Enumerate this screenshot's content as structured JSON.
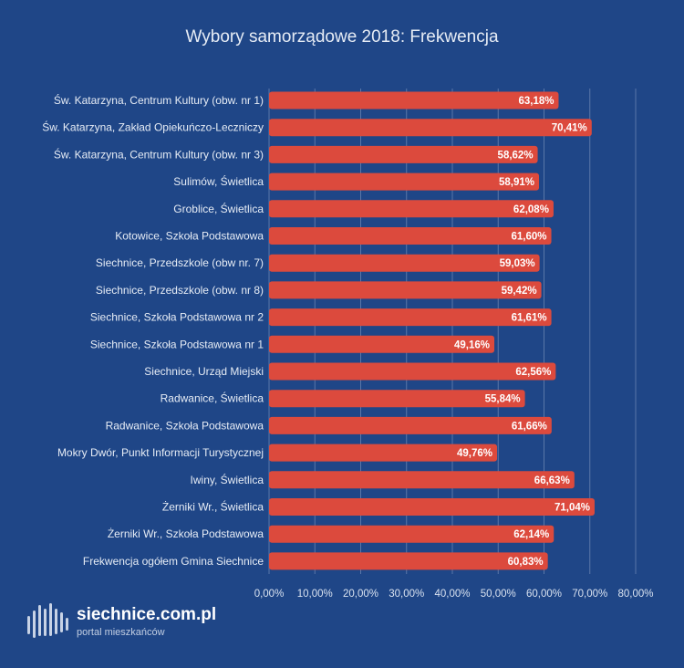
{
  "chart_data": {
    "type": "bar",
    "orientation": "horizontal",
    "title": "Wybory samorządowe 2018: Frekwencja",
    "categories": [
      "Św. Katarzyna, Centrum Kultury (obw. nr 1)",
      "Św. Katarzyna, Zakład Opiekuńczo-Leczniczy",
      "Św. Katarzyna, Centrum Kultury (obw. nr 3)",
      "Sulimów, Świetlica",
      "Groblice, Świetlica",
      "Kotowice, Szkoła Podstawowa",
      "Siechnice, Przedszkole (obw nr. 7)",
      "Siechnice, Przedszkole (obw. nr 8)",
      "Siechnice, Szkoła Podstawowa nr 2",
      "Siechnice, Szkoła Podstawowa nr 1",
      "Siechnice, Urząd Miejski",
      "Radwanice, Świetlica",
      "Radwanice, Szkoła Podstawowa",
      "Mokry Dwór, Punkt Informacji Turystycznej",
      "Iwiny, Świetlica",
      "Żerniki Wr., Świetlica",
      "Żerniki Wr., Szkoła Podstawowa",
      "Frekwencja ogółem Gmina Siechnice"
    ],
    "values": [
      63.18,
      70.41,
      58.62,
      58.91,
      62.08,
      61.6,
      59.03,
      59.42,
      61.61,
      49.16,
      62.56,
      55.84,
      61.66,
      49.76,
      66.63,
      71.04,
      62.14,
      60.83
    ],
    "data_labels": [
      "63,18%",
      "70,41%",
      "58,62%",
      "58,91%",
      "62,08%",
      "61,60%",
      "59,03%",
      "59,42%",
      "61,61%",
      "49,16%",
      "62,56%",
      "55,84%",
      "61,66%",
      "49,76%",
      "66,63%",
      "71,04%",
      "62,14%",
      "60,83%"
    ],
    "xlim": [
      0,
      80
    ],
    "xticks": [
      0,
      10,
      20,
      30,
      40,
      50,
      60,
      70,
      80
    ],
    "xtick_labels": [
      "0,00%",
      "10,00%",
      "20,00%",
      "30,00%",
      "40,00%",
      "50,00%",
      "60,00%",
      "70,00%",
      "80,00%"
    ],
    "grid": true,
    "legend": "none",
    "bar_color": "#dc4a3d",
    "background_color": "#1f4687"
  },
  "logo": {
    "main": "siechnice.com.pl",
    "sub": "portal mieszkańców"
  }
}
